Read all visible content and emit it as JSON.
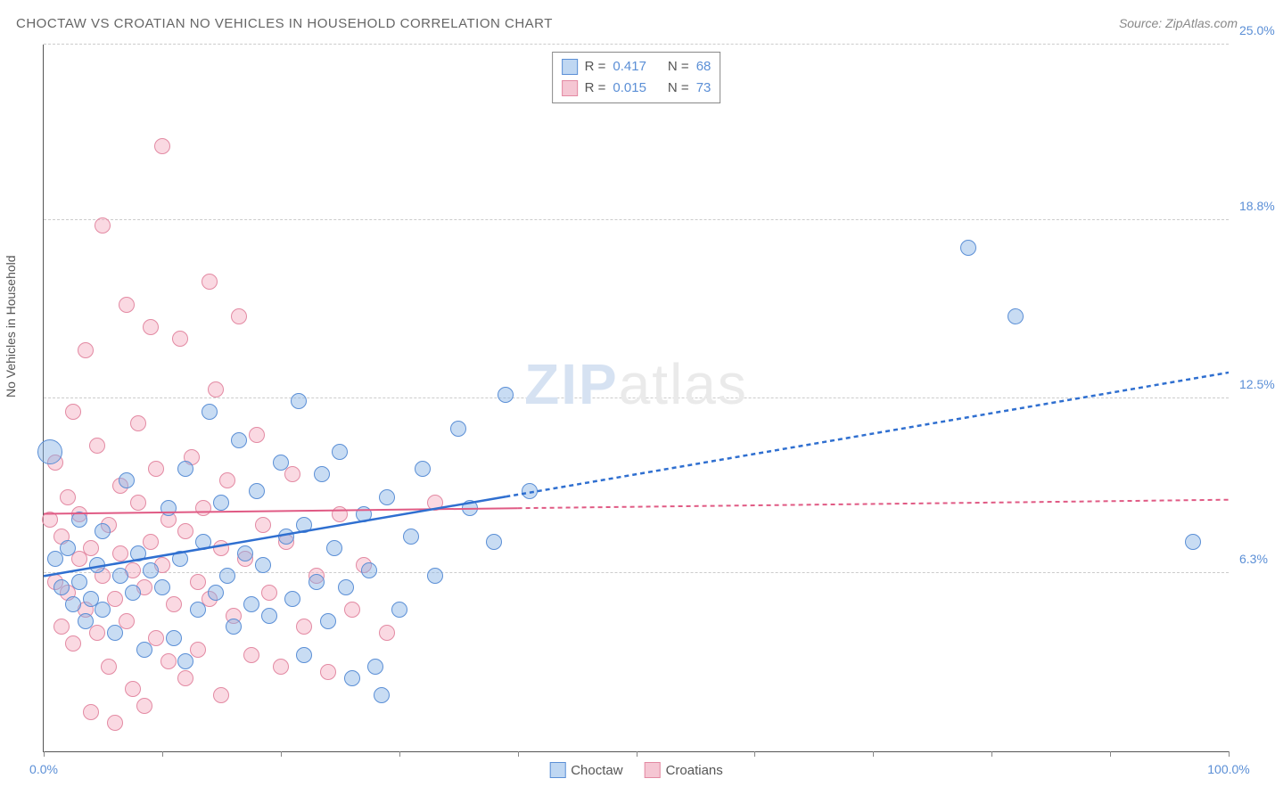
{
  "header": {
    "title": "CHOCTAW VS CROATIAN NO VEHICLES IN HOUSEHOLD CORRELATION CHART",
    "source": "Source: ZipAtlas.com"
  },
  "axes": {
    "y_label": "No Vehicles in Household",
    "x_min": 0,
    "x_max": 100,
    "y_min": 0,
    "y_max": 25,
    "x_ticks": [
      {
        "v": 0,
        "label": "0.0%"
      },
      {
        "v": 10
      },
      {
        "v": 20
      },
      {
        "v": 30
      },
      {
        "v": 40
      },
      {
        "v": 50
      },
      {
        "v": 60
      },
      {
        "v": 70
      },
      {
        "v": 80
      },
      {
        "v": 90
      },
      {
        "v": 100,
        "label": "100.0%"
      }
    ],
    "y_ticks": [
      {
        "v": 6.3,
        "label": "6.3%"
      },
      {
        "v": 12.5,
        "label": "12.5%"
      },
      {
        "v": 18.8,
        "label": "18.8%"
      },
      {
        "v": 25.0,
        "label": "25.0%"
      }
    ],
    "grid_color": "#cccccc"
  },
  "legend_top": {
    "rows": [
      {
        "color_fill": "#bfd7f2",
        "color_border": "#5b8fd6",
        "r_label": "R =",
        "r_val": "0.417",
        "n_label": "N =",
        "n_val": "68"
      },
      {
        "color_fill": "#f5c6d3",
        "color_border": "#e38aa3",
        "r_label": "R =",
        "r_val": "0.015",
        "n_label": "N =",
        "n_val": "73"
      }
    ]
  },
  "legend_bottom": {
    "items": [
      {
        "color_fill": "#bfd7f2",
        "color_border": "#5b8fd6",
        "label": "Choctaw"
      },
      {
        "color_fill": "#f5c6d3",
        "color_border": "#e38aa3",
        "label": "Croatians"
      }
    ]
  },
  "watermark": {
    "part1": "ZIP",
    "part2": "atlas"
  },
  "series": {
    "choctaw": {
      "color_fill": "rgba(133,178,228,0.45)",
      "color_border": "#5b8fd6",
      "point_radius": 9,
      "trend": {
        "x1": 0,
        "y1": 6.2,
        "x2": 100,
        "y2": 13.4,
        "solid_until_x": 39,
        "stroke": "#2f6fd0",
        "width": 2.5
      },
      "points": [
        {
          "x": 0.5,
          "y": 10.6,
          "r": 14
        },
        {
          "x": 1,
          "y": 6.8
        },
        {
          "x": 1.5,
          "y": 5.8
        },
        {
          "x": 2,
          "y": 7.2
        },
        {
          "x": 2.5,
          "y": 5.2
        },
        {
          "x": 3,
          "y": 6.0
        },
        {
          "x": 3,
          "y": 8.2
        },
        {
          "x": 3.5,
          "y": 4.6
        },
        {
          "x": 4,
          "y": 5.4
        },
        {
          "x": 4.5,
          "y": 6.6
        },
        {
          "x": 5,
          "y": 7.8
        },
        {
          "x": 5,
          "y": 5.0
        },
        {
          "x": 6,
          "y": 4.2
        },
        {
          "x": 6.5,
          "y": 6.2
        },
        {
          "x": 7,
          "y": 9.6
        },
        {
          "x": 7.5,
          "y": 5.6
        },
        {
          "x": 8,
          "y": 7.0
        },
        {
          "x": 8.5,
          "y": 3.6
        },
        {
          "x": 9,
          "y": 6.4
        },
        {
          "x": 10,
          "y": 5.8
        },
        {
          "x": 10.5,
          "y": 8.6
        },
        {
          "x": 11,
          "y": 4.0
        },
        {
          "x": 11.5,
          "y": 6.8
        },
        {
          "x": 12,
          "y": 3.2
        },
        {
          "x": 12,
          "y": 10.0
        },
        {
          "x": 13,
          "y": 5.0
        },
        {
          "x": 13.5,
          "y": 7.4
        },
        {
          "x": 14,
          "y": 12.0
        },
        {
          "x": 14.5,
          "y": 5.6
        },
        {
          "x": 15,
          "y": 8.8
        },
        {
          "x": 15.5,
          "y": 6.2
        },
        {
          "x": 16,
          "y": 4.4
        },
        {
          "x": 16.5,
          "y": 11.0
        },
        {
          "x": 17,
          "y": 7.0
        },
        {
          "x": 17.5,
          "y": 5.2
        },
        {
          "x": 18,
          "y": 9.2
        },
        {
          "x": 18.5,
          "y": 6.6
        },
        {
          "x": 19,
          "y": 4.8
        },
        {
          "x": 20,
          "y": 10.2
        },
        {
          "x": 20.5,
          "y": 7.6
        },
        {
          "x": 21,
          "y": 5.4
        },
        {
          "x": 21.5,
          "y": 12.4
        },
        {
          "x": 22,
          "y": 8.0
        },
        {
          "x": 22,
          "y": 3.4
        },
        {
          "x": 23,
          "y": 6.0
        },
        {
          "x": 23.5,
          "y": 9.8
        },
        {
          "x": 24,
          "y": 4.6
        },
        {
          "x": 24.5,
          "y": 7.2
        },
        {
          "x": 25,
          "y": 10.6
        },
        {
          "x": 25.5,
          "y": 5.8
        },
        {
          "x": 26,
          "y": 2.6
        },
        {
          "x": 27,
          "y": 8.4
        },
        {
          "x": 27.5,
          "y": 6.4
        },
        {
          "x": 28,
          "y": 3.0
        },
        {
          "x": 28.5,
          "y": 2.0
        },
        {
          "x": 29,
          "y": 9.0
        },
        {
          "x": 30,
          "y": 5.0
        },
        {
          "x": 31,
          "y": 7.6
        },
        {
          "x": 32,
          "y": 10.0
        },
        {
          "x": 33,
          "y": 6.2
        },
        {
          "x": 35,
          "y": 11.4
        },
        {
          "x": 36,
          "y": 8.6
        },
        {
          "x": 38,
          "y": 7.4
        },
        {
          "x": 39,
          "y": 12.6
        },
        {
          "x": 41,
          "y": 9.2
        },
        {
          "x": 78,
          "y": 17.8
        },
        {
          "x": 82,
          "y": 15.4
        },
        {
          "x": 97,
          "y": 7.4
        }
      ]
    },
    "croatians": {
      "color_fill": "rgba(243,170,190,0.45)",
      "color_border": "#e38aa3",
      "point_radius": 9,
      "trend": {
        "x1": 0,
        "y1": 8.4,
        "x2": 100,
        "y2": 8.9,
        "solid_until_x": 40,
        "stroke": "#e05a84",
        "width": 2
      },
      "points": [
        {
          "x": 0.5,
          "y": 8.2
        },
        {
          "x": 1,
          "y": 6.0
        },
        {
          "x": 1,
          "y": 10.2
        },
        {
          "x": 1.5,
          "y": 4.4
        },
        {
          "x": 1.5,
          "y": 7.6
        },
        {
          "x": 2,
          "y": 5.6
        },
        {
          "x": 2,
          "y": 9.0
        },
        {
          "x": 2.5,
          "y": 3.8
        },
        {
          "x": 2.5,
          "y": 12.0
        },
        {
          "x": 3,
          "y": 6.8
        },
        {
          "x": 3,
          "y": 8.4
        },
        {
          "x": 3.5,
          "y": 5.0
        },
        {
          "x": 3.5,
          "y": 14.2
        },
        {
          "x": 4,
          "y": 7.2
        },
        {
          "x": 4,
          "y": 1.4
        },
        {
          "x": 4.5,
          "y": 4.2
        },
        {
          "x": 4.5,
          "y": 10.8
        },
        {
          "x": 5,
          "y": 6.2
        },
        {
          "x": 5,
          "y": 18.6
        },
        {
          "x": 5.5,
          "y": 8.0
        },
        {
          "x": 5.5,
          "y": 3.0
        },
        {
          "x": 6,
          "y": 5.4
        },
        {
          "x": 6,
          "y": 1.0
        },
        {
          "x": 6.5,
          "y": 9.4
        },
        {
          "x": 6.5,
          "y": 7.0
        },
        {
          "x": 7,
          "y": 4.6
        },
        {
          "x": 7,
          "y": 15.8
        },
        {
          "x": 7.5,
          "y": 6.4
        },
        {
          "x": 7.5,
          "y": 2.2
        },
        {
          "x": 8,
          "y": 11.6
        },
        {
          "x": 8,
          "y": 8.8
        },
        {
          "x": 8.5,
          "y": 5.8
        },
        {
          "x": 8.5,
          "y": 1.6
        },
        {
          "x": 9,
          "y": 7.4
        },
        {
          "x": 9,
          "y": 15.0
        },
        {
          "x": 9.5,
          "y": 4.0
        },
        {
          "x": 9.5,
          "y": 10.0
        },
        {
          "x": 10,
          "y": 6.6
        },
        {
          "x": 10,
          "y": 21.4
        },
        {
          "x": 10.5,
          "y": 3.2
        },
        {
          "x": 10.5,
          "y": 8.2
        },
        {
          "x": 11,
          "y": 5.2
        },
        {
          "x": 11.5,
          "y": 14.6
        },
        {
          "x": 12,
          "y": 7.8
        },
        {
          "x": 12,
          "y": 2.6
        },
        {
          "x": 12.5,
          "y": 10.4
        },
        {
          "x": 13,
          "y": 6.0
        },
        {
          "x": 13,
          "y": 3.6
        },
        {
          "x": 13.5,
          "y": 8.6
        },
        {
          "x": 14,
          "y": 16.6
        },
        {
          "x": 14,
          "y": 5.4
        },
        {
          "x": 14.5,
          "y": 12.8
        },
        {
          "x": 15,
          "y": 7.2
        },
        {
          "x": 15,
          "y": 2.0
        },
        {
          "x": 15.5,
          "y": 9.6
        },
        {
          "x": 16,
          "y": 4.8
        },
        {
          "x": 16.5,
          "y": 15.4
        },
        {
          "x": 17,
          "y": 6.8
        },
        {
          "x": 17.5,
          "y": 3.4
        },
        {
          "x": 18,
          "y": 11.2
        },
        {
          "x": 18.5,
          "y": 8.0
        },
        {
          "x": 19,
          "y": 5.6
        },
        {
          "x": 20,
          "y": 3.0
        },
        {
          "x": 20.5,
          "y": 7.4
        },
        {
          "x": 21,
          "y": 9.8
        },
        {
          "x": 22,
          "y": 4.4
        },
        {
          "x": 23,
          "y": 6.2
        },
        {
          "x": 24,
          "y": 2.8
        },
        {
          "x": 25,
          "y": 8.4
        },
        {
          "x": 26,
          "y": 5.0
        },
        {
          "x": 27,
          "y": 6.6
        },
        {
          "x": 29,
          "y": 4.2
        },
        {
          "x": 33,
          "y": 8.8
        }
      ]
    }
  }
}
